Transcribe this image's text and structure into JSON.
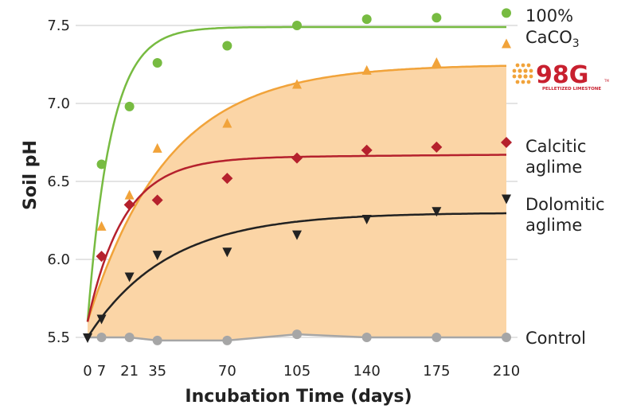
{
  "chart_data": {
    "type": "scatter",
    "xlabel": "Incubation Time (days)",
    "ylabel": "Soil pH",
    "x_ticks": [
      0,
      7,
      21,
      35,
      70,
      105,
      140,
      175,
      210
    ],
    "y_ticks": [
      5.5,
      6.0,
      6.5,
      7.0,
      7.5
    ],
    "y_tick_labels": [
      "5.5",
      "6.0",
      "6.5",
      "7.0",
      "7.5"
    ],
    "xlim": [
      0,
      210
    ],
    "ylim": [
      5.5,
      7.75
    ],
    "grid": "horizontal",
    "series": [
      {
        "name": "100% CaCO3",
        "label_lines": [
          "100%",
          "CaCO",
          "3"
        ],
        "marker": "circle",
        "color": "#77bb41",
        "x": [
          7,
          21,
          35,
          70,
          105,
          140,
          175,
          210
        ],
        "y": [
          6.61,
          6.98,
          7.26,
          7.37,
          7.5,
          7.54,
          7.55,
          7.58
        ],
        "curve_start": 5.6,
        "curve_plateau": 7.49,
        "curve_rate": 0.085
      },
      {
        "name": "98G Pelletized Limestone",
        "marker": "triangle-up",
        "color": "#f1a33a",
        "x": [
          7,
          21,
          35,
          70,
          105,
          140,
          175,
          210
        ],
        "y": [
          6.21,
          6.41,
          6.71,
          6.87,
          7.12,
          7.21,
          7.26,
          7.38
        ],
        "curve_start": 5.6,
        "curve_plateau": 7.25,
        "curve_rate": 0.025
      },
      {
        "name": "Calcitic aglime",
        "label_lines": [
          "Calcitic",
          "aglime"
        ],
        "marker": "diamond",
        "color": "#b5212d",
        "x": [
          7,
          21,
          35,
          70,
          105,
          140,
          175,
          210
        ],
        "y": [
          6.02,
          6.35,
          6.38,
          6.52,
          6.65,
          6.7,
          6.72,
          6.75
        ],
        "curve_start": 5.6,
        "curve_plateau": 6.65,
        "curve_rate": 0.055,
        "curve_slope": 0.0001
      },
      {
        "name": "Dolomitic aglime",
        "label_lines": [
          "Dolomitic",
          "aglime"
        ],
        "marker": "triangle-down",
        "color": "#222222",
        "x": [
          0,
          7,
          21,
          35,
          70,
          105,
          140,
          175,
          210
        ],
        "y": [
          5.5,
          5.62,
          5.89,
          6.03,
          6.05,
          6.16,
          6.26,
          6.31,
          6.39
        ],
        "curve_start": 5.5,
        "curve_plateau": 6.3,
        "curve_rate": 0.025
      },
      {
        "name": "Control",
        "label_lines": [
          "Control"
        ],
        "marker": "circle",
        "color": "#a6a6a6",
        "x": [
          7,
          21,
          35,
          70,
          105,
          140,
          175,
          210
        ],
        "y": [
          5.5,
          5.5,
          5.48,
          5.48,
          5.52,
          5.5,
          5.5,
          5.5
        ]
      }
    ],
    "shaded_band": {
      "color": "#fbd5a6",
      "between": [
        "98G Pelletized Limestone",
        "Control"
      ]
    }
  },
  "logo": {
    "text": "98G",
    "subtext": "PELLETIZED LIMESTONE",
    "tm": "TM",
    "dot_color": "#f1a33a",
    "text_color": "#c8202f"
  }
}
